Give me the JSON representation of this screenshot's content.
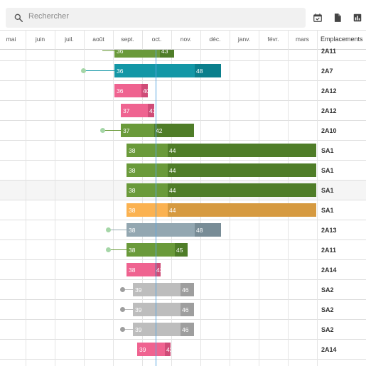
{
  "toolbar": {
    "search_placeholder": "Rechercher",
    "icons": [
      "search-icon",
      "calendar-check-icon",
      "document-icon",
      "bar-chart-icon"
    ]
  },
  "timeline": {
    "months": [
      "mai",
      "juin",
      "juil.",
      "août",
      "sept.",
      "oct.",
      "nov.",
      "déc.",
      "janv.",
      "févr.",
      "mars"
    ],
    "location_header": "Emplacements"
  },
  "rows": [
    {
      "location": "2A11",
      "start": "36",
      "end": "43"
    },
    {
      "location": "2A7",
      "start": "36",
      "end": "48"
    },
    {
      "location": "2A12",
      "start": "36",
      "end": "40"
    },
    {
      "location": "2A12",
      "start": "37",
      "end": "41"
    },
    {
      "location": "2A10",
      "start": "37",
      "end": "42"
    },
    {
      "location": "SA1",
      "start": "38",
      "end": "44"
    },
    {
      "location": "SA1",
      "start": "38",
      "end": "44"
    },
    {
      "location": "SA1",
      "start": "38",
      "end": "44"
    },
    {
      "location": "SA1",
      "start": "38",
      "end": "44"
    },
    {
      "location": "2A13",
      "start": "38",
      "end": "48"
    },
    {
      "location": "2A11",
      "start": "38",
      "end": "45"
    },
    {
      "location": "2A14",
      "start": "38",
      "end": "42"
    },
    {
      "location": "SA2",
      "start": "39",
      "end": "46"
    },
    {
      "location": "SA2",
      "start": "39",
      "end": "46"
    },
    {
      "location": "SA2",
      "start": "39",
      "end": "46"
    },
    {
      "location": "2A14",
      "start": "39",
      "end": "42"
    }
  ],
  "colors": {
    "green": "#6a9a3a",
    "green_dark": "#4f7d28",
    "teal": "#1397a6",
    "teal_dark": "#0b7f8c",
    "pink": "#ef6390",
    "pink_dark": "#cf4c78",
    "orange": "#fbb251",
    "orange_dark": "#d69a40",
    "bluegrey": "#93a7b1",
    "bluegrey_dark": "#788c96",
    "grey": "#bdbdbd",
    "grey_dark": "#9e9e9e",
    "today_line": "#5aa7e0"
  }
}
